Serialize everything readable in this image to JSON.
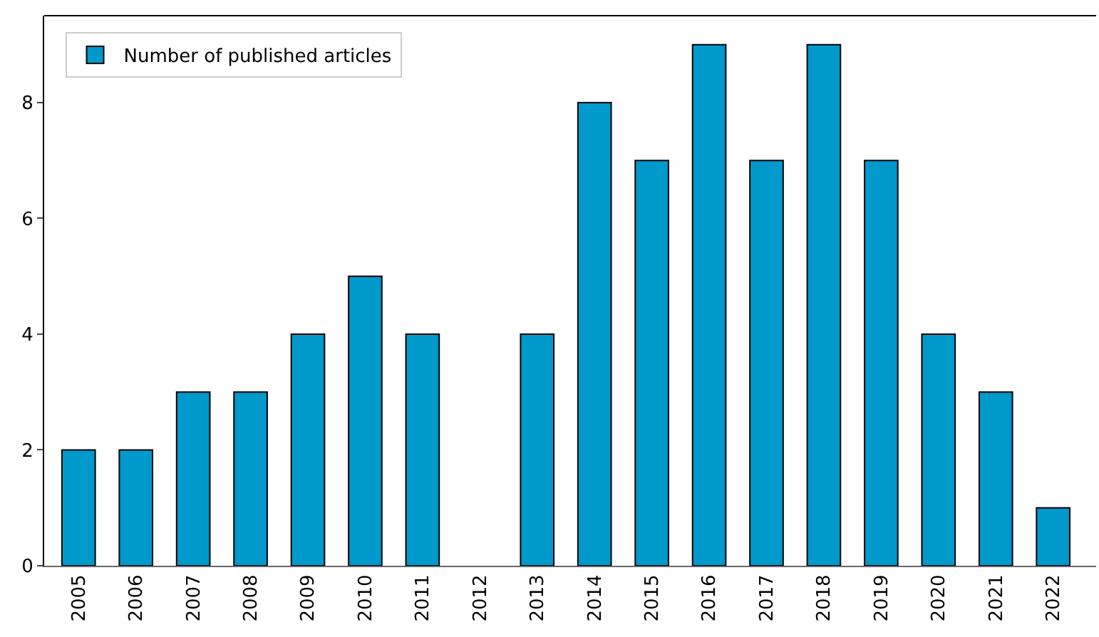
{
  "chart_data": {
    "type": "bar",
    "categories": [
      "2005",
      "2006",
      "2007",
      "2008",
      "2009",
      "2010",
      "2011",
      "2012",
      "2013",
      "2014",
      "2015",
      "2016",
      "2017",
      "2018",
      "2019",
      "2020",
      "2021",
      "2022"
    ],
    "series": [
      {
        "name": "Number of published articles",
        "color": "#0099cc",
        "values": [
          2,
          2,
          3,
          3,
          4,
          5,
          4,
          0,
          4,
          8,
          7,
          9,
          7,
          9,
          7,
          4,
          3,
          1
        ]
      }
    ],
    "ylim": [
      0,
      9.5
    ],
    "yticks": [
      0,
      2,
      4,
      6,
      8
    ],
    "grid": false,
    "legend": "top left"
  }
}
